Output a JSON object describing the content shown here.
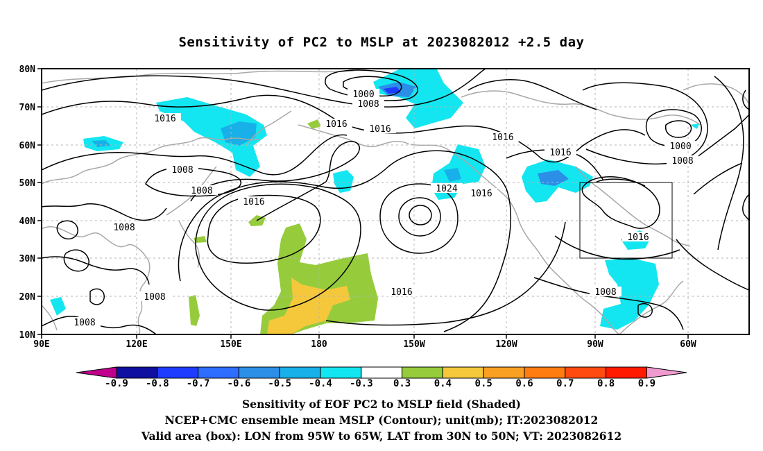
{
  "title": "Sensitivity of PC2 to MSLP at 2023082012 +2.5 day",
  "axes": {
    "lat_labels": [
      "80N",
      "70N",
      "60N",
      "50N",
      "40N",
      "30N",
      "20N",
      "10N"
    ],
    "lon_labels": [
      "90E",
      "120E",
      "150E",
      "180",
      "150W",
      "120W",
      "90W",
      "60W"
    ]
  },
  "contour_labels": [
    "1000",
    "1008",
    "1016",
    "1016",
    "1016",
    "1016",
    "1016",
    "1008",
    "1008",
    "1016",
    "1008",
    "1008",
    "1008",
    "1024",
    "1016",
    "1016",
    "1016",
    "1000",
    "1008",
    "1016",
    "1008"
  ],
  "colorbar": {
    "labels": [
      "-0.9",
      "-0.8",
      "-0.7",
      "-0.6",
      "-0.5",
      "-0.4",
      "-0.3",
      "0.3",
      "0.4",
      "0.5",
      "0.6",
      "0.7",
      "0.8",
      "0.9"
    ],
    "colors": [
      "#c0008c",
      "#0f0fa0",
      "#1e3cff",
      "#2d6dff",
      "#2b8fe8",
      "#17b0e8",
      "#13e6f0",
      "#ffffff",
      "#96cc3c",
      "#f5c83c",
      "#f9a022",
      "#ff7d10",
      "#ff4b10",
      "#ff1a00",
      "#f09bd0"
    ]
  },
  "captions": [
    "Sensitivity of EOF PC2 to MSLP field (Shaded)",
    "NCEP+CMC ensemble mean MSLP (Contour); unit(mb); IT:2023082012",
    "Valid area (box): LON from 95W to 65W, LAT from 30N to 50N; VT: 2023082612"
  ]
}
